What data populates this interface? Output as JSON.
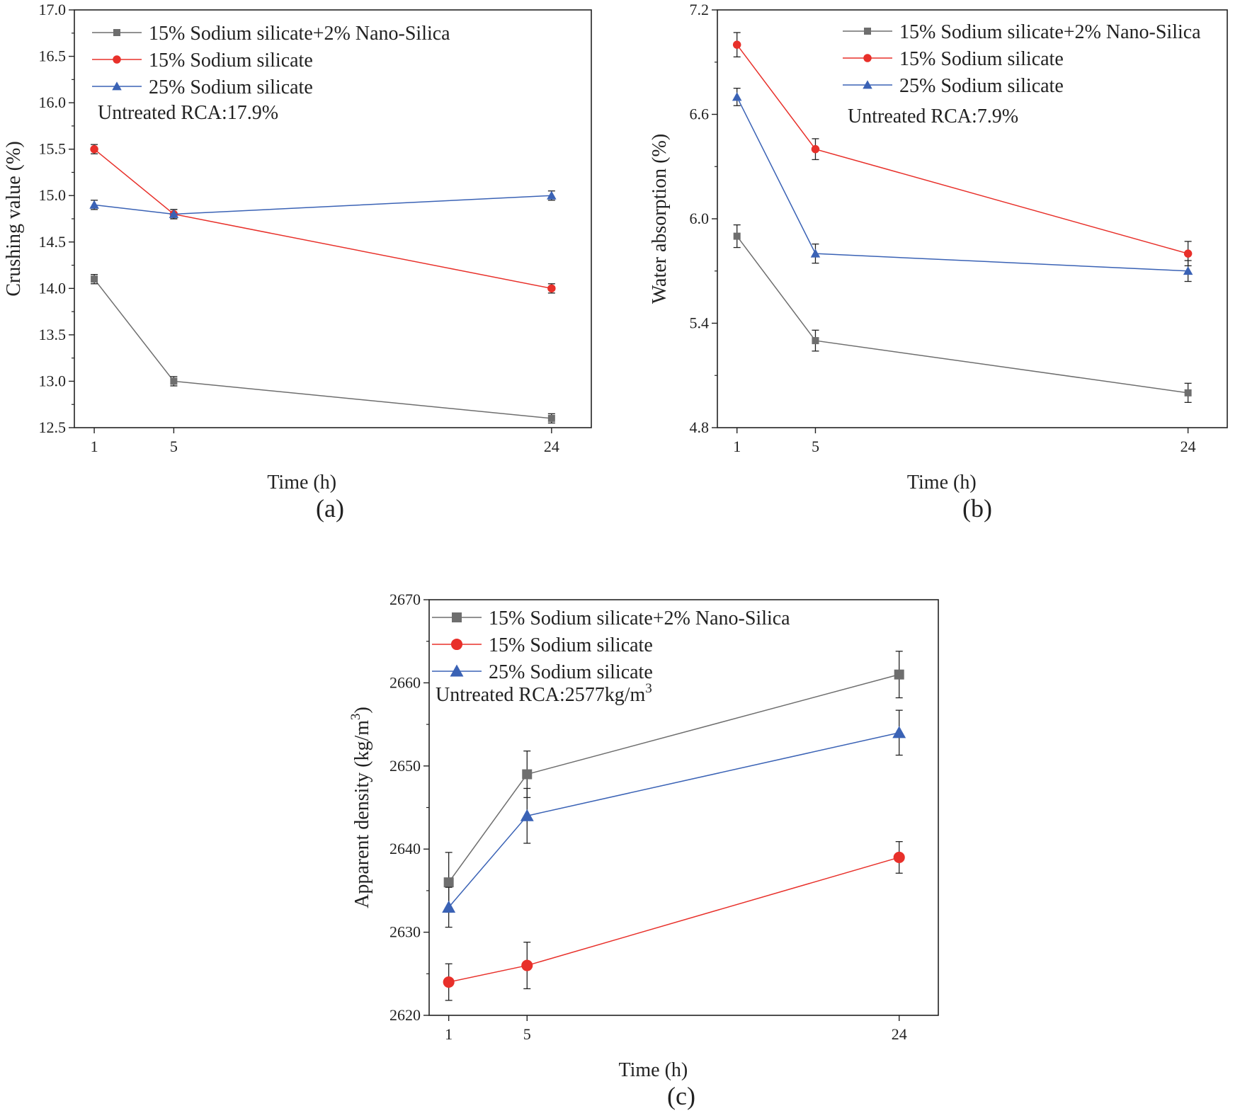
{
  "chart_data": [
    {
      "id": "a",
      "type": "line",
      "caption": "(a)",
      "xlabel": "Time (h)",
      "ylabel": "Crushing value (%)",
      "x": [
        1,
        5,
        24
      ],
      "x_tick_labels": [
        "1",
        "5",
        "24"
      ],
      "xlim": [
        0,
        26
      ],
      "ylim": [
        12.5,
        17.0
      ],
      "y_ticks": [
        "12.5",
        "13.0",
        "13.5",
        "14.0",
        "14.5",
        "15.0",
        "15.5",
        "16.0",
        "16.5",
        "17.0"
      ],
      "annotation": "Untreated RCA:17.9%",
      "legend_placement": "top-left",
      "series": [
        {
          "name": "15% Sodium silicate+2% Nano-Silica",
          "color": "#6e6e6e",
          "marker": "square",
          "values": [
            14.1,
            13.0,
            12.6
          ],
          "errors": [
            0.05,
            0.05,
            0.05
          ]
        },
        {
          "name": "15% Sodium silicate",
          "color": "#e8302a",
          "marker": "circle",
          "values": [
            15.5,
            14.8,
            14.0
          ],
          "errors": [
            0.05,
            0.05,
            0.05
          ]
        },
        {
          "name": "25% Sodium silicate",
          "color": "#3a62b5",
          "marker": "triangle",
          "values": [
            14.9,
            14.8,
            15.0
          ],
          "errors": [
            0.05,
            0.05,
            0.05
          ]
        }
      ]
    },
    {
      "id": "b",
      "type": "line",
      "caption": "(b)",
      "xlabel": "Time (h)",
      "ylabel": "Water absorption (%)",
      "x": [
        1,
        5,
        24
      ],
      "x_tick_labels": [
        "1",
        "5",
        "24"
      ],
      "xlim": [
        0,
        26
      ],
      "ylim": [
        4.8,
        7.2
      ],
      "y_ticks": [
        "4.8",
        "5.4",
        "6.0",
        "6.6",
        "7.2"
      ],
      "annotation": "Untreated RCA:7.9%",
      "legend_placement": "top-right",
      "series": [
        {
          "name": "15% Sodium silicate+2% Nano-Silica",
          "color": "#6e6e6e",
          "marker": "square",
          "values": [
            5.9,
            5.3,
            5.0
          ],
          "errors": [
            0.065,
            0.06,
            0.055
          ]
        },
        {
          "name": "15% Sodium silicate",
          "color": "#e8302a",
          "marker": "circle",
          "values": [
            7.0,
            6.4,
            5.8
          ],
          "errors": [
            0.07,
            0.06,
            0.07
          ]
        },
        {
          "name": "25% Sodium silicate",
          "color": "#3a62b5",
          "marker": "triangle",
          "values": [
            6.7,
            5.8,
            5.7
          ],
          "errors": [
            0.05,
            0.055,
            0.06
          ]
        }
      ]
    },
    {
      "id": "c",
      "type": "line",
      "caption": "(c)",
      "xlabel": "Time (h)",
      "ylabel": "Apparent density (kg/m",
      "ylabel_superscript": "3",
      "ylabel_suffix": ")",
      "x": [
        1,
        5,
        24
      ],
      "x_tick_labels": [
        "1",
        "5",
        "24"
      ],
      "xlim": [
        0,
        26
      ],
      "ylim": [
        2620,
        2670
      ],
      "y_ticks": [
        "2620",
        "2630",
        "2640",
        "2650",
        "2660",
        "2670"
      ],
      "annotation": "Untreated RCA:2577kg/m",
      "annotation_superscript": "3",
      "legend_placement": "top-left",
      "series": [
        {
          "name": "15% Sodium silicate+2% Nano-Silica",
          "color": "#6e6e6e",
          "marker": "square",
          "values": [
            2636,
            2649,
            2661
          ],
          "errors": [
            3.6,
            2.8,
            2.8
          ]
        },
        {
          "name": "15% Sodium silicate",
          "color": "#e8302a",
          "marker": "circle",
          "values": [
            2624,
            2626,
            2639
          ],
          "errors": [
            2.2,
            2.8,
            1.9
          ]
        },
        {
          "name": "25% Sodium silicate",
          "color": "#3a62b5",
          "marker": "triangle",
          "values": [
            2633,
            2644,
            2654
          ],
          "errors": [
            2.4,
            3.3,
            2.7
          ]
        }
      ]
    }
  ]
}
